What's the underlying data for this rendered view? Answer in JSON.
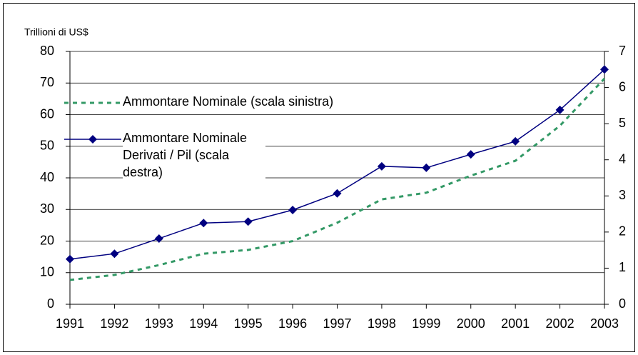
{
  "chart_data": {
    "type": "line",
    "y_label": "Trillioni di US$",
    "categories": [
      "1991",
      "1992",
      "1993",
      "1994",
      "1995",
      "1996",
      "1997",
      "1998",
      "1999",
      "2000",
      "2001",
      "2002",
      "2003"
    ],
    "series": [
      {
        "name": "Ammontare Nominale (scala sinistra)",
        "color": "#339966",
        "dashed": true,
        "axis": "y",
        "values": [
          7.7,
          9.3,
          12.4,
          16,
          17.2,
          20,
          25.8,
          33.2,
          35.3,
          40.7,
          45.4,
          56.5,
          71.4
        ]
      },
      {
        "name": "Ammontare Nominale Derivati / Pil (scala destra)",
        "color": "#000080",
        "marker": "diamond",
        "axis": "y2",
        "values": [
          1.25,
          1.4,
          1.82,
          2.25,
          2.29,
          2.61,
          3.07,
          3.82,
          3.78,
          4.15,
          4.51,
          5.38,
          6.5
        ]
      }
    ],
    "ylim": [
      0,
      80
    ],
    "yticks": [
      0,
      10,
      20,
      30,
      40,
      50,
      60,
      70,
      80
    ],
    "y2lim": [
      0,
      7
    ],
    "y2ticks": [
      0,
      1,
      2,
      3,
      4,
      5,
      6,
      7
    ],
    "grid": true
  }
}
